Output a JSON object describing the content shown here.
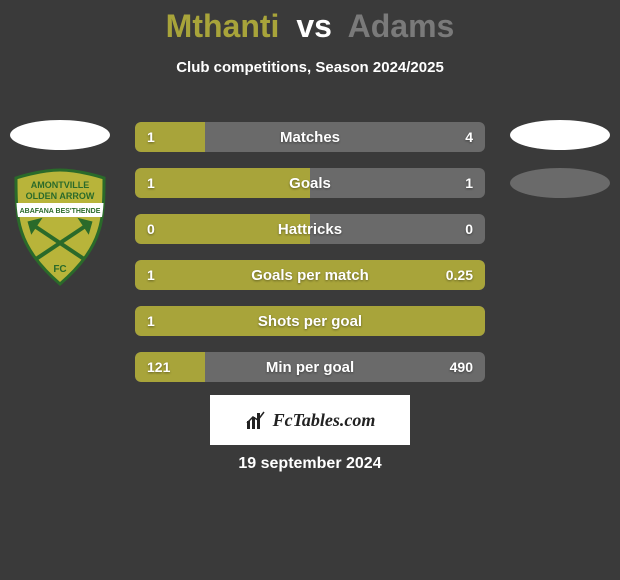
{
  "title": {
    "player1": "Mthanti",
    "vs": "vs",
    "player2": "Adams"
  },
  "subtitle": "Club competitions, Season 2024/2025",
  "colors": {
    "player1": "#a8a43a",
    "player2": "#6a6a6a",
    "background": "#3a3a3a",
    "text": "#ffffff",
    "brand_bg": "#ffffff",
    "brand_text": "#222222"
  },
  "badge": {
    "top_text": "AMONTVILLE",
    "mid_text": "OLDEN ARROW",
    "band_text": "ABAFANA BES'THENDE",
    "fc": "FC",
    "outer_fill": "#b8b43a",
    "band_fill": "#ffffff",
    "band_text_color": "#2a6a2a",
    "arrow_fill": "#2a6a2a"
  },
  "bars": [
    {
      "label": "Matches",
      "left": "1",
      "right": "4",
      "left_pct": 20,
      "full_left": false
    },
    {
      "label": "Goals",
      "left": "1",
      "right": "1",
      "left_pct": 50,
      "full_left": false
    },
    {
      "label": "Hattricks",
      "left": "0",
      "right": "0",
      "left_pct": 50,
      "full_left": false
    },
    {
      "label": "Goals per match",
      "left": "1",
      "right": "0.25",
      "left_pct": 100,
      "full_left": true
    },
    {
      "label": "Shots per goal",
      "left": "1",
      "right": "",
      "left_pct": 100,
      "full_left": true
    },
    {
      "label": "Min per goal",
      "left": "121",
      "right": "490",
      "left_pct": 20,
      "full_left": false
    }
  ],
  "brand": "FcTables.com",
  "date": "19 september 2024"
}
